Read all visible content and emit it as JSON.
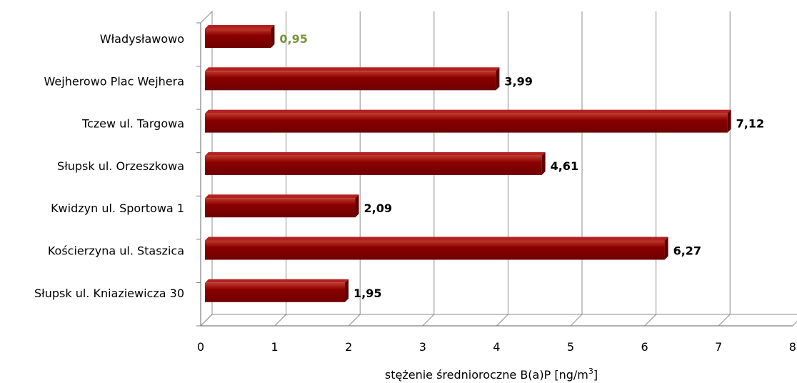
{
  "chart_data": {
    "type": "bar",
    "orientation": "horizontal",
    "categories": [
      "Władysławowo",
      "Wejherowo Plac Wejhera",
      "Tczew ul. Targowa",
      "Słupsk ul. Orzeszkowa",
      "Kwidzyn ul. Sportowa 1",
      "Kościerzyna ul. Staszica",
      "Słupsk ul. Kniaziewicza 30"
    ],
    "values": [
      0.95,
      3.99,
      7.12,
      4.61,
      2.09,
      6.27,
      1.95
    ],
    "value_labels": [
      "0,95",
      "3,99",
      "7,12",
      "4,61",
      "2,09",
      "6,27",
      "1,95"
    ],
    "label_colors": [
      "#77933c",
      "#000000",
      "#000000",
      "#000000",
      "#000000",
      "#000000",
      "#000000"
    ],
    "xlim": [
      0,
      8
    ],
    "xticks": [
      "0",
      "1",
      "2",
      "3",
      "4",
      "5",
      "6",
      "7",
      "8"
    ],
    "xlabel_main": "stężenie średnioroczne B(a)P [ng/m",
    "xlabel_sup": "3",
    "xlabel_end": "]",
    "bar_color": "#8b0000",
    "grid": true,
    "style": "3d"
  }
}
